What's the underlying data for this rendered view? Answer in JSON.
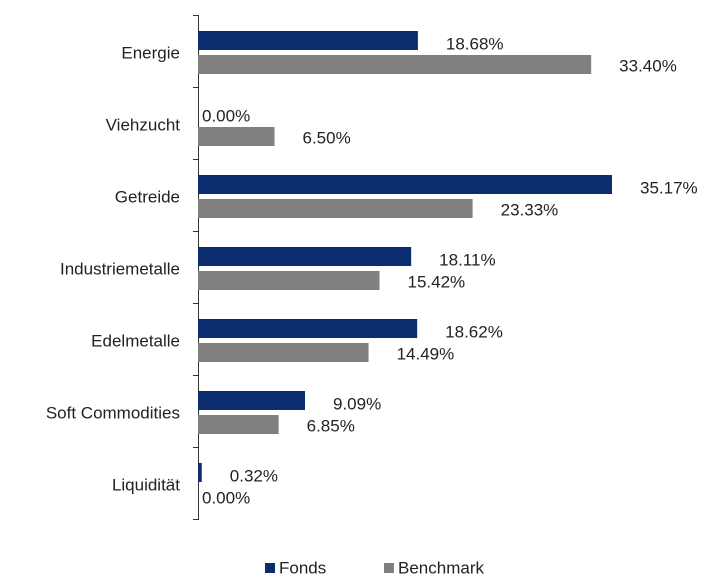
{
  "chart_data": {
    "type": "bar",
    "orientation": "horizontal",
    "categories": [
      "Energie",
      "Viehzucht",
      "Getreide",
      "Industriemetalle",
      "Edelmetalle",
      "Soft Commodities",
      "Liquidität"
    ],
    "series": [
      {
        "name": "Fonds",
        "color": "#0b2c6e",
        "values": [
          18.68,
          0.0,
          35.17,
          18.11,
          18.62,
          9.09,
          0.32
        ],
        "value_labels": [
          "18.68%",
          "0.00%",
          "35.17%",
          "18.11%",
          "18.62%",
          "9.09%",
          "0.32%"
        ]
      },
      {
        "name": "Benchmark",
        "color": "#808080",
        "values": [
          33.4,
          6.5,
          23.33,
          15.42,
          14.49,
          6.85,
          0.0
        ],
        "value_labels": [
          "33.40%",
          "6.50%",
          "23.33%",
          "15.42%",
          "14.49%",
          "6.85%",
          "0.00%"
        ]
      }
    ],
    "legend": "bottom"
  }
}
